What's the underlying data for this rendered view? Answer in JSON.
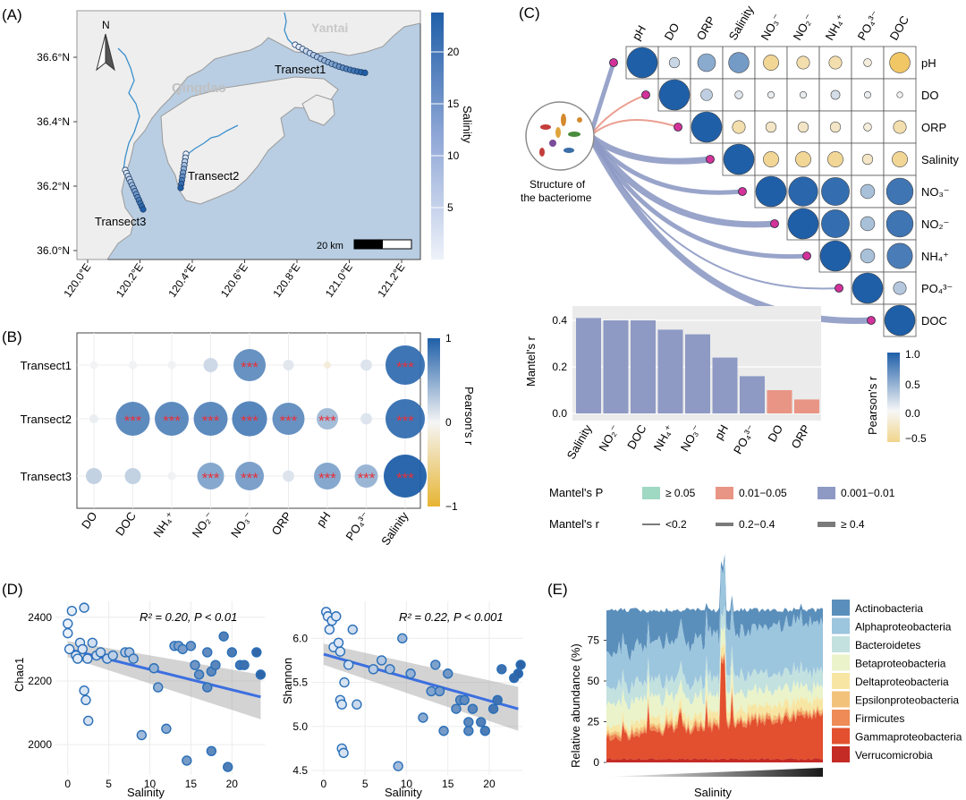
{
  "colors": {
    "blue_dark": "#1f5fa8",
    "blue_mid": "#6f8fc8",
    "blue_light": "#c9d6ee",
    "yellow": "#f1d58b",
    "yellow_dark": "#e7b533",
    "sea": "#b7cde2",
    "land": "#eeeeee",
    "red_star": "#e8303a",
    "mantel_red": "#e99585",
    "mantel_blue": "#8e9ac4",
    "mantel_green": "#9fd8c3",
    "fit_line": "#3c6fe0"
  },
  "panels": {
    "a": "(A)",
    "b": "(B)",
    "c": "(C)",
    "d": "(D)",
    "e": "(E)"
  },
  "panel_a": {
    "compass": "N",
    "places": [
      "Yantai",
      "Qingdao"
    ],
    "transects": [
      "Transect1",
      "Transect2",
      "Transect3"
    ],
    "y_ticks": [
      "36.6°N",
      "36.4°N",
      "36.2°N",
      "36.0°N"
    ],
    "x_ticks": [
      "120.0°E",
      "120.2°E",
      "120.4°E",
      "120.6°E",
      "120.8°E",
      "121.0°E",
      "121.2°E"
    ],
    "scale_bar": "20 km",
    "colorbar_title": "Salinity",
    "colorbar_ticks": [
      "20",
      "15",
      "10",
      "5"
    ]
  },
  "panel_b": {
    "rows": [
      "Transect1",
      "Transect2",
      "Transect3"
    ],
    "cols": [
      "DO",
      "DOC",
      "NH₄⁺",
      "NO₂⁻",
      "NO₃⁻",
      "ORP",
      "pH",
      "PO₄³⁻",
      "Salinity"
    ],
    "values": [
      [
        0.02,
        0.03,
        0.03,
        0.2,
        0.7,
        0.1,
        0,
        0.12,
        0.9
      ],
      [
        0.05,
        0.75,
        0.75,
        0.75,
        0.78,
        0.7,
        0.4,
        0.12,
        0.9
      ],
      [
        0.25,
        0.25,
        0.03,
        0.55,
        0.6,
        0.12,
        0.55,
        0.45,
        1.0
      ]
    ],
    "signif": [
      [
        0,
        0,
        0,
        0,
        1,
        0,
        0,
        0,
        1
      ],
      [
        0,
        1,
        1,
        1,
        1,
        1,
        1,
        0,
        1
      ],
      [
        0,
        0,
        0,
        1,
        1,
        0,
        1,
        1,
        1
      ]
    ],
    "star": "***",
    "colorbar_title": "Pearson's r",
    "colorbar_ticks": [
      "1",
      "0",
      "−1"
    ]
  },
  "panel_c": {
    "vars": [
      "pH",
      "DO",
      "ORP",
      "Salinity",
      "NO₃⁻",
      "NO₂⁻",
      "NH₄⁺",
      "PO₄³⁻",
      "DOC"
    ],
    "corr": [
      [
        1,
        0.2,
        0.5,
        0.6,
        -0.4,
        -0.3,
        -0.3,
        -0.1,
        -0.6
      ],
      [
        0.2,
        1,
        0.25,
        0.1,
        0.05,
        0.05,
        0.15,
        0.05,
        0.02
      ],
      [
        0.5,
        0.25,
        1,
        -0.3,
        -0.2,
        -0.2,
        -0.2,
        -0.1,
        -0.3
      ],
      [
        0.6,
        0.1,
        -0.3,
        1,
        -0.4,
        -0.4,
        -0.4,
        -0.2,
        -0.4
      ],
      [
        -0.4,
        0.05,
        -0.2,
        -0.4,
        1,
        0.95,
        0.9,
        0.35,
        0.85
      ],
      [
        -0.3,
        0.05,
        -0.2,
        -0.4,
        0.95,
        1,
        0.9,
        0.35,
        0.85
      ],
      [
        -0.3,
        0.15,
        -0.2,
        -0.4,
        0.9,
        0.9,
        1,
        0.35,
        0.8
      ],
      [
        -0.1,
        0.05,
        -0.1,
        -0.2,
        0.35,
        0.35,
        0.35,
        1,
        0.3
      ],
      [
        -0.6,
        0.02,
        -0.3,
        -0.4,
        0.85,
        0.85,
        0.8,
        0.3,
        1
      ]
    ],
    "bacteriome_label_1": "Structure of",
    "bacteriome_label_2": "the bacteriome",
    "mantel_r": [
      0.24,
      0.1,
      0.06,
      0.41,
      0.34,
      0.4,
      0.36,
      0.16,
      0.4
    ],
    "mantel_p_class": [
      "mid",
      "low",
      "low",
      "mid",
      "mid",
      "mid",
      "mid",
      "mid",
      "mid"
    ],
    "bar_chart": {
      "ylabel": "Mantel's r",
      "categories": [
        "Salinity",
        "NO₂⁻",
        "DOC",
        "NH₄⁺",
        "NO₃⁻",
        "pH",
        "PO₄³⁻",
        "DO",
        "ORP"
      ],
      "values": [
        0.41,
        0.4,
        0.4,
        0.36,
        0.34,
        0.24,
        0.16,
        0.1,
        0.06
      ],
      "p_class": [
        "mid",
        "mid",
        "mid",
        "mid",
        "mid",
        "mid",
        "mid",
        "low",
        "low"
      ],
      "yticks": [
        "0.4",
        "0.2",
        "0.0"
      ]
    },
    "colorbar_title": "Pearson's r",
    "colorbar_ticks": [
      "1.0",
      "0.5",
      "0.0",
      "−0.5"
    ],
    "legend_p_title": "Mantel's P",
    "legend_p_items": [
      "≥ 0.05",
      "0.01−0.05",
      "0.001−0.01"
    ],
    "legend_r_title": "Mantel's r",
    "legend_r_items": [
      "<0.2",
      "0.2−0.4",
      "≥ 0.4"
    ]
  },
  "panel_d": {
    "xlabel": "Salinity",
    "chao1": {
      "ylabel": "Chao1",
      "stat": "R² = 0.20, P < 0.01",
      "yticks": [
        "2400",
        "2200",
        "2000"
      ],
      "xticks": [
        "0",
        "5",
        "10",
        "15",
        "20"
      ],
      "points": [
        [
          0,
          2380
        ],
        [
          0,
          2350
        ],
        [
          0.2,
          2300
        ],
        [
          0.5,
          2420
        ],
        [
          1,
          2280
        ],
        [
          1.2,
          2270
        ],
        [
          1.5,
          2320
        ],
        [
          1.8,
          2300
        ],
        [
          2,
          2170
        ],
        [
          2,
          2430
        ],
        [
          2.2,
          2140
        ],
        [
          2.4,
          2270
        ],
        [
          2.5,
          2075
        ],
        [
          3,
          2320
        ],
        [
          3.5,
          2280
        ],
        [
          4,
          2290
        ],
        [
          4.8,
          2270
        ],
        [
          5.5,
          2280
        ],
        [
          7,
          2290
        ],
        [
          7.5,
          2290
        ],
        [
          8,
          2270
        ],
        [
          9,
          2030
        ],
        [
          10.5,
          2240
        ],
        [
          11,
          2180
        ],
        [
          12,
          2050
        ],
        [
          13,
          2310
        ],
        [
          13.5,
          2310
        ],
        [
          14,
          2300
        ],
        [
          14.5,
          1950
        ],
        [
          15,
          2310
        ],
        [
          15.5,
          2250
        ],
        [
          16,
          2220
        ],
        [
          17,
          2290
        ],
        [
          17,
          2180
        ],
        [
          17.5,
          1980
        ],
        [
          17.5,
          2230
        ],
        [
          18,
          2250
        ],
        [
          19,
          2340
        ],
        [
          19.5,
          1930
        ],
        [
          20,
          2290
        ],
        [
          21,
          2250
        ],
        [
          21.5,
          2250
        ],
        [
          23,
          2290
        ],
        [
          23.5,
          2220
        ]
      ]
    },
    "shannon": {
      "ylabel": "Shannon",
      "stat": "R² = 0.22, P < 0.001",
      "yticks": [
        "6.0",
        "5.5",
        "5.0",
        "4.5"
      ],
      "xticks": [
        "0",
        "5",
        "10",
        "15",
        "20"
      ],
      "points": [
        [
          0.3,
          6.3
        ],
        [
          0.5,
          6.25
        ],
        [
          0.7,
          6.1
        ],
        [
          1,
          6.2
        ],
        [
          1.2,
          5.9
        ],
        [
          1.5,
          6.25
        ],
        [
          1.8,
          5.95
        ],
        [
          2,
          5.85
        ],
        [
          2,
          5.3
        ],
        [
          2.2,
          5.25
        ],
        [
          2.2,
          4.75
        ],
        [
          2.4,
          4.7
        ],
        [
          2.5,
          5.5
        ],
        [
          3,
          5.7
        ],
        [
          3.5,
          6.1
        ],
        [
          4,
          5.25
        ],
        [
          6,
          5.65
        ],
        [
          7,
          5.75
        ],
        [
          8,
          5.65
        ],
        [
          9,
          4.55
        ],
        [
          9.5,
          6.0
        ],
        [
          10.5,
          5.6
        ],
        [
          12,
          5.1
        ],
        [
          13,
          5.4
        ],
        [
          13.5,
          5.7
        ],
        [
          14,
          5.4
        ],
        [
          14.5,
          4.95
        ],
        [
          15,
          5.6
        ],
        [
          16,
          5.2
        ],
        [
          16.5,
          5.3
        ],
        [
          17,
          5.3
        ],
        [
          17.5,
          5.05
        ],
        [
          17.5,
          4.95
        ],
        [
          18,
          5.2
        ],
        [
          19,
          5.05
        ],
        [
          19.5,
          4.95
        ],
        [
          20.5,
          5.2
        ],
        [
          21,
          5.3
        ],
        [
          21.5,
          5.65
        ],
        [
          23,
          5.55
        ],
        [
          23.5,
          5.6
        ],
        [
          23.8,
          5.7
        ]
      ]
    }
  },
  "panel_e": {
    "ylabel": "Relative abundance (%)",
    "xlabel": "Salinity",
    "yticks": [
      "75",
      "50",
      "25",
      "0"
    ],
    "taxa": [
      "Actinobacteria",
      "Alphaproteobacteria",
      "Bacteroidetes",
      "Betaproteobacteria",
      "Deltaproteobacteria",
      "Epsilonproteobacteria",
      "Firmicutes",
      "Gammaproteobacteria",
      "Verrucomicrobia"
    ],
    "taxa_colors": [
      "#5b8fbb",
      "#9cc5de",
      "#c2e1df",
      "#eaf3c9",
      "#f7e6a3",
      "#f3c27a",
      "#ee8b56",
      "#e2502f",
      "#c42b24"
    ]
  }
}
